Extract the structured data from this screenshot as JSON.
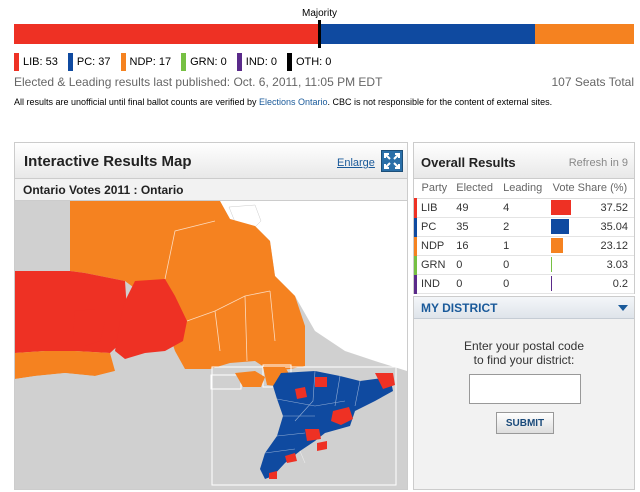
{
  "seat_bar": {
    "majority_label": "Majority",
    "segments": [
      {
        "party": "LIB",
        "seats": 53,
        "color": "#ee3124"
      },
      {
        "party": "PC",
        "seats": 37,
        "color": "#0f4aa0"
      },
      {
        "party": "NDP",
        "seats": 17,
        "color": "#f58220"
      }
    ],
    "total_seats": 107
  },
  "legend": [
    {
      "label": "LIB: 53",
      "color": "#ee3124"
    },
    {
      "label": "PC: 37",
      "color": "#0f4aa0"
    },
    {
      "label": "NDP: 17",
      "color": "#f58220"
    },
    {
      "label": "GRN: 0",
      "color": "#76c043"
    },
    {
      "label": "IND: 0",
      "color": "#5a2a8a"
    },
    {
      "label": "OTH: 0",
      "color": "#000000"
    }
  ],
  "published_text": "Elected & Leading results last published: Oct. 6, 2011, 11:05 PM EDT",
  "seats_total_text": "107 Seats Total",
  "disclaimer": {
    "before": "All results are unofficial until final ballot counts are verified by ",
    "link": "Elections Ontario",
    "after": ". CBC is not responsible for the content of external sites."
  },
  "map_panel": {
    "title": "Interactive Results Map",
    "enlarge_label": "Enlarge",
    "subtitle": "Ontario Votes 2011 : Ontario",
    "colors": {
      "lib": "#ee3124",
      "pc": "#0f4aa0",
      "ndp": "#f58220",
      "water": "#ffffff",
      "land_other": "#d0d0d0"
    }
  },
  "results_panel": {
    "title": "Overall Results",
    "refresh_text": "Refresh in 9",
    "columns": [
      "Party",
      "Elected",
      "Leading",
      "Vote Share (%)"
    ],
    "rows": [
      {
        "party": "LIB",
        "elected": "49",
        "leading": "4",
        "share": "37.52",
        "color": "#ee3124"
      },
      {
        "party": "PC",
        "elected": "35",
        "leading": "2",
        "share": "35.04",
        "color": "#0f4aa0"
      },
      {
        "party": "NDP",
        "elected": "16",
        "leading": "1",
        "share": "23.12",
        "color": "#f58220"
      },
      {
        "party": "GRN",
        "elected": "0",
        "leading": "0",
        "share": "3.03",
        "color": "#76c043"
      },
      {
        "party": "IND",
        "elected": "0",
        "leading": "0",
        "share": "0.2",
        "color": "#5a2a8a"
      }
    ]
  },
  "district_panel": {
    "title": "MY DISTRICT",
    "prompt_line1": "Enter your postal code",
    "prompt_line2": "to find your district:",
    "input_value": "",
    "submit_label": "SUBMIT"
  }
}
